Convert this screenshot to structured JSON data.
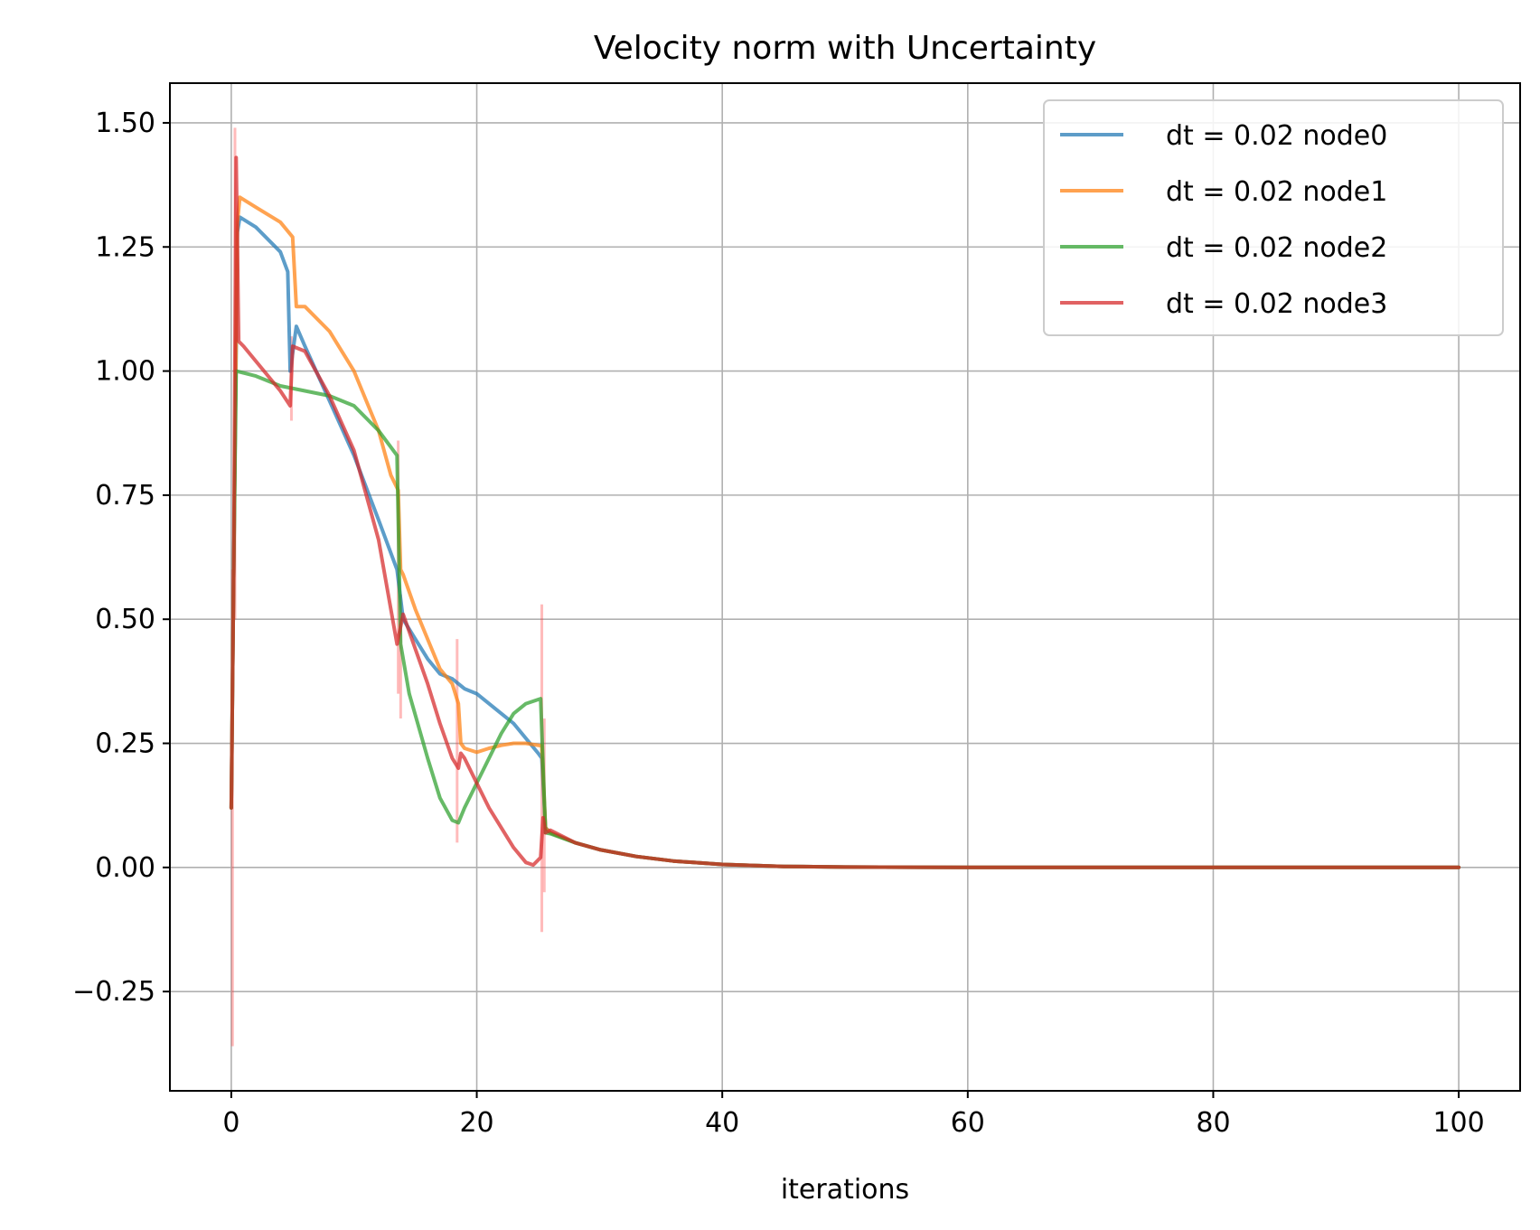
{
  "chart_data": {
    "type": "line",
    "title": "Velocity norm with Uncertainty",
    "xlabel": "iterations",
    "ylabel": "",
    "xlim": [
      -5,
      105
    ],
    "ylim": [
      -0.45,
      1.58
    ],
    "xticks": [
      0,
      20,
      40,
      60,
      80,
      100
    ],
    "yticks": [
      -0.25,
      0.0,
      0.25,
      0.5,
      0.75,
      1.0,
      1.25,
      1.5
    ],
    "xtick_labels": [
      "0",
      "20",
      "40",
      "60",
      "80",
      "100"
    ],
    "ytick_labels": [
      "−0.25",
      "0.00",
      "0.25",
      "0.50",
      "0.75",
      "1.00",
      "1.25",
      "1.50"
    ],
    "grid": true,
    "legend_position": "upper-right",
    "series": [
      {
        "name": "dt = 0.02 node0",
        "color": "#1f77b4",
        "points": [
          [
            0,
            0.12
          ],
          [
            0.2,
            0.6
          ],
          [
            0.5,
            1.28
          ],
          [
            0.7,
            1.31
          ],
          [
            2,
            1.29
          ],
          [
            4,
            1.24
          ],
          [
            4.6,
            1.2
          ],
          [
            4.8,
            1.0
          ],
          [
            5.3,
            1.09
          ],
          [
            6,
            1.05
          ],
          [
            8,
            0.94
          ],
          [
            10,
            0.83
          ],
          [
            12,
            0.7
          ],
          [
            13.5,
            0.6
          ],
          [
            14,
            0.5
          ],
          [
            15,
            0.46
          ],
          [
            16,
            0.42
          ],
          [
            17,
            0.39
          ],
          [
            18,
            0.38
          ],
          [
            19,
            0.36
          ],
          [
            20,
            0.35
          ],
          [
            21,
            0.33
          ],
          [
            22,
            0.31
          ],
          [
            23,
            0.29
          ],
          [
            24,
            0.26
          ],
          [
            25,
            0.23
          ],
          [
            25.3,
            0.22
          ],
          [
            25.6,
            0.08
          ],
          [
            26,
            0.07
          ],
          [
            28,
            0.05
          ],
          [
            30,
            0.036
          ],
          [
            33,
            0.022
          ],
          [
            36,
            0.013
          ],
          [
            40,
            0.006
          ],
          [
            45,
            0.002
          ],
          [
            50,
            0.0008
          ],
          [
            60,
            0.0
          ],
          [
            70,
            0.0
          ],
          [
            80,
            0.0
          ],
          [
            90,
            0.0
          ],
          [
            100,
            0.0
          ]
        ]
      },
      {
        "name": "dt = 0.02 node1",
        "color": "#ff7f0e",
        "points": [
          [
            0,
            0.12
          ],
          [
            0.2,
            0.6
          ],
          [
            0.5,
            1.3
          ],
          [
            0.7,
            1.35
          ],
          [
            2,
            1.33
          ],
          [
            4,
            1.3
          ],
          [
            5,
            1.27
          ],
          [
            5.3,
            1.13
          ],
          [
            6,
            1.13
          ],
          [
            8,
            1.08
          ],
          [
            10,
            1.0
          ],
          [
            12,
            0.88
          ],
          [
            13,
            0.79
          ],
          [
            13.6,
            0.76
          ],
          [
            13.8,
            0.6
          ],
          [
            14,
            0.59
          ],
          [
            15,
            0.52
          ],
          [
            16,
            0.46
          ],
          [
            17,
            0.4
          ],
          [
            18,
            0.37
          ],
          [
            18.5,
            0.33
          ],
          [
            18.7,
            0.25
          ],
          [
            19,
            0.24
          ],
          [
            20,
            0.232
          ],
          [
            21,
            0.24
          ],
          [
            22,
            0.246
          ],
          [
            23,
            0.25
          ],
          [
            24,
            0.25
          ],
          [
            25.3,
            0.245
          ],
          [
            25.6,
            0.08
          ],
          [
            26,
            0.07
          ],
          [
            28,
            0.05
          ],
          [
            30,
            0.036
          ],
          [
            33,
            0.022
          ],
          [
            36,
            0.013
          ],
          [
            40,
            0.006
          ],
          [
            45,
            0.002
          ],
          [
            50,
            0.0008
          ],
          [
            60,
            0.0
          ],
          [
            70,
            0.0
          ],
          [
            80,
            0.0
          ],
          [
            90,
            0.0
          ],
          [
            100,
            0.0
          ]
        ]
      },
      {
        "name": "dt = 0.02 node2",
        "color": "#2ca02c",
        "points": [
          [
            0,
            0.12
          ],
          [
            0.2,
            0.6
          ],
          [
            0.4,
            1.0
          ],
          [
            2,
            0.99
          ],
          [
            4,
            0.97
          ],
          [
            6,
            0.96
          ],
          [
            8,
            0.95
          ],
          [
            10,
            0.93
          ],
          [
            12,
            0.88
          ],
          [
            13.5,
            0.83
          ],
          [
            13.8,
            0.45
          ],
          [
            14.5,
            0.35
          ],
          [
            16,
            0.22
          ],
          [
            17,
            0.14
          ],
          [
            18,
            0.095
          ],
          [
            18.5,
            0.09
          ],
          [
            19,
            0.12
          ],
          [
            20,
            0.17
          ],
          [
            21,
            0.22
          ],
          [
            22,
            0.27
          ],
          [
            23,
            0.31
          ],
          [
            24,
            0.33
          ],
          [
            25.2,
            0.34
          ],
          [
            25.6,
            0.07
          ],
          [
            26,
            0.068
          ],
          [
            28,
            0.05
          ],
          [
            30,
            0.036
          ],
          [
            33,
            0.022
          ],
          [
            36,
            0.013
          ],
          [
            40,
            0.006
          ],
          [
            45,
            0.002
          ],
          [
            50,
            0.0008
          ],
          [
            60,
            0.0
          ],
          [
            70,
            0.0
          ],
          [
            80,
            0.0
          ],
          [
            90,
            0.0
          ],
          [
            100,
            0.0
          ]
        ]
      },
      {
        "name": "dt = 0.02 node3",
        "color": "#d62728",
        "points": [
          [
            0,
            0.12
          ],
          [
            0.2,
            0.6
          ],
          [
            0.4,
            1.43
          ],
          [
            0.6,
            1.06
          ],
          [
            1,
            1.05
          ],
          [
            2,
            1.02
          ],
          [
            4,
            0.96
          ],
          [
            4.8,
            0.93
          ],
          [
            5,
            1.05
          ],
          [
            6,
            1.04
          ],
          [
            8,
            0.95
          ],
          [
            10,
            0.84
          ],
          [
            12,
            0.66
          ],
          [
            13.5,
            0.45
          ],
          [
            14,
            0.51
          ],
          [
            15,
            0.44
          ],
          [
            16,
            0.37
          ],
          [
            17,
            0.29
          ],
          [
            18,
            0.22
          ],
          [
            18.5,
            0.2
          ],
          [
            18.7,
            0.23
          ],
          [
            19,
            0.22
          ],
          [
            20,
            0.17
          ],
          [
            21,
            0.12
          ],
          [
            22,
            0.08
          ],
          [
            23,
            0.04
          ],
          [
            24,
            0.01
          ],
          [
            24.6,
            0.005
          ],
          [
            25.2,
            0.02
          ],
          [
            25.4,
            0.1
          ],
          [
            25.6,
            0.07
          ],
          [
            26,
            0.075
          ],
          [
            28,
            0.05
          ],
          [
            30,
            0.036
          ],
          [
            33,
            0.022
          ],
          [
            36,
            0.013
          ],
          [
            40,
            0.006
          ],
          [
            45,
            0.002
          ],
          [
            50,
            0.0008
          ],
          [
            60,
            0.0
          ],
          [
            70,
            0.0
          ],
          [
            80,
            0.0
          ],
          [
            90,
            0.0
          ],
          [
            100,
            0.0
          ]
        ]
      }
    ],
    "uncertainty_spikes": [
      {
        "x": 0.1,
        "low": -0.36,
        "high": 0.6
      },
      {
        "x": 0.3,
        "low": 0.5,
        "high": 1.49
      },
      {
        "x": 4.9,
        "low": 0.9,
        "high": 1.07
      },
      {
        "x": 13.6,
        "low": 0.35,
        "high": 0.86
      },
      {
        "x": 13.8,
        "low": 0.3,
        "high": 0.55
      },
      {
        "x": 18.4,
        "low": 0.05,
        "high": 0.46
      },
      {
        "x": 25.3,
        "low": -0.13,
        "high": 0.53
      },
      {
        "x": 25.5,
        "low": -0.05,
        "high": 0.3
      }
    ]
  }
}
